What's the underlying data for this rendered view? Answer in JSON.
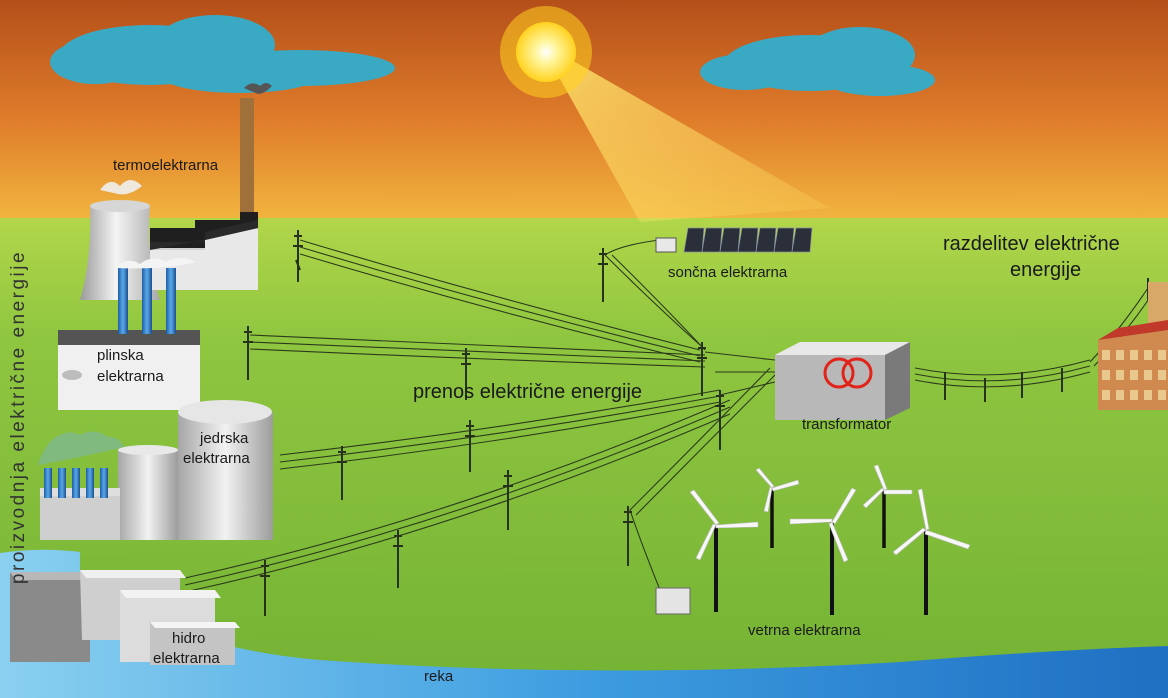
{
  "labels": {
    "vertical": "proizvodnja električne energije",
    "thermal": "termoelektrarna",
    "gas": [
      "plinska",
      "elektrarna"
    ],
    "nuclear": [
      "jedrska",
      "elektrarna"
    ],
    "hydro": [
      "hidro",
      "elektrarna"
    ],
    "solar": "sončna elektrarna",
    "transmission": "prenos električne energije",
    "transformer": "transformator",
    "distribution": [
      "razdelitev električne",
      "energije"
    ],
    "wind": "vetrna elektrarna",
    "river": "reka"
  },
  "colors": {
    "sky_top": "#b54f1a",
    "sky_bottom": "#f2b840",
    "ground": "#8dc63f",
    "cloud": "#3aa9c4",
    "sun": "#fff176",
    "river": "#2f8fd6",
    "transformer_coil": "#e2231a",
    "building_gray": "#c8c8c8"
  }
}
